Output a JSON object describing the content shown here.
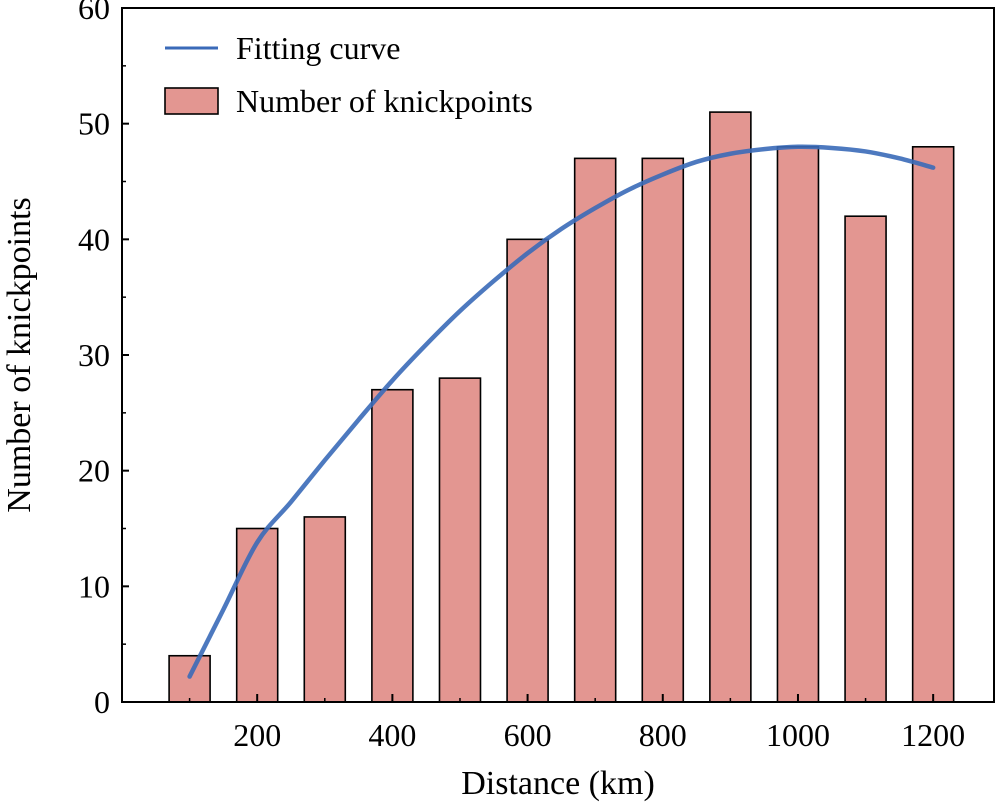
{
  "chart_data": {
    "type": "bar",
    "xlabel": "Distance (km)",
    "ylabel": "Number of knickpoints",
    "xlim": [
      0,
      1290
    ],
    "ylim": [
      0,
      60
    ],
    "xticks": [
      200,
      400,
      600,
      800,
      1000,
      1200
    ],
    "yticks": [
      0,
      10,
      20,
      30,
      40,
      50,
      60
    ],
    "grid": false,
    "legend_position": "top-left",
    "series": [
      {
        "name": "Number of knickpoints",
        "type": "bar",
        "color": "#e39691",
        "x": [
          100,
          200,
          300,
          400,
          500,
          600,
          700,
          800,
          900,
          1000,
          1100,
          1200
        ],
        "values": [
          4,
          15,
          16,
          27,
          28,
          40,
          47,
          47,
          51,
          48,
          42,
          48
        ]
      },
      {
        "name": "Fitting curve",
        "type": "line",
        "color": "#3a6ab8",
        "x": [
          100,
          150,
          200,
          250,
          300,
          350,
          400,
          450,
          500,
          550,
          600,
          650,
          700,
          750,
          800,
          850,
          900,
          950,
          1000,
          1050,
          1100,
          1150,
          1200
        ],
        "values": [
          2.2,
          8.0,
          13.8,
          17.3,
          20.9,
          24.4,
          27.8,
          30.9,
          33.8,
          36.4,
          38.8,
          40.9,
          42.7,
          44.3,
          45.6,
          46.7,
          47.4,
          47.8,
          48.0,
          47.9,
          47.6,
          47.0,
          46.2
        ]
      }
    ]
  }
}
